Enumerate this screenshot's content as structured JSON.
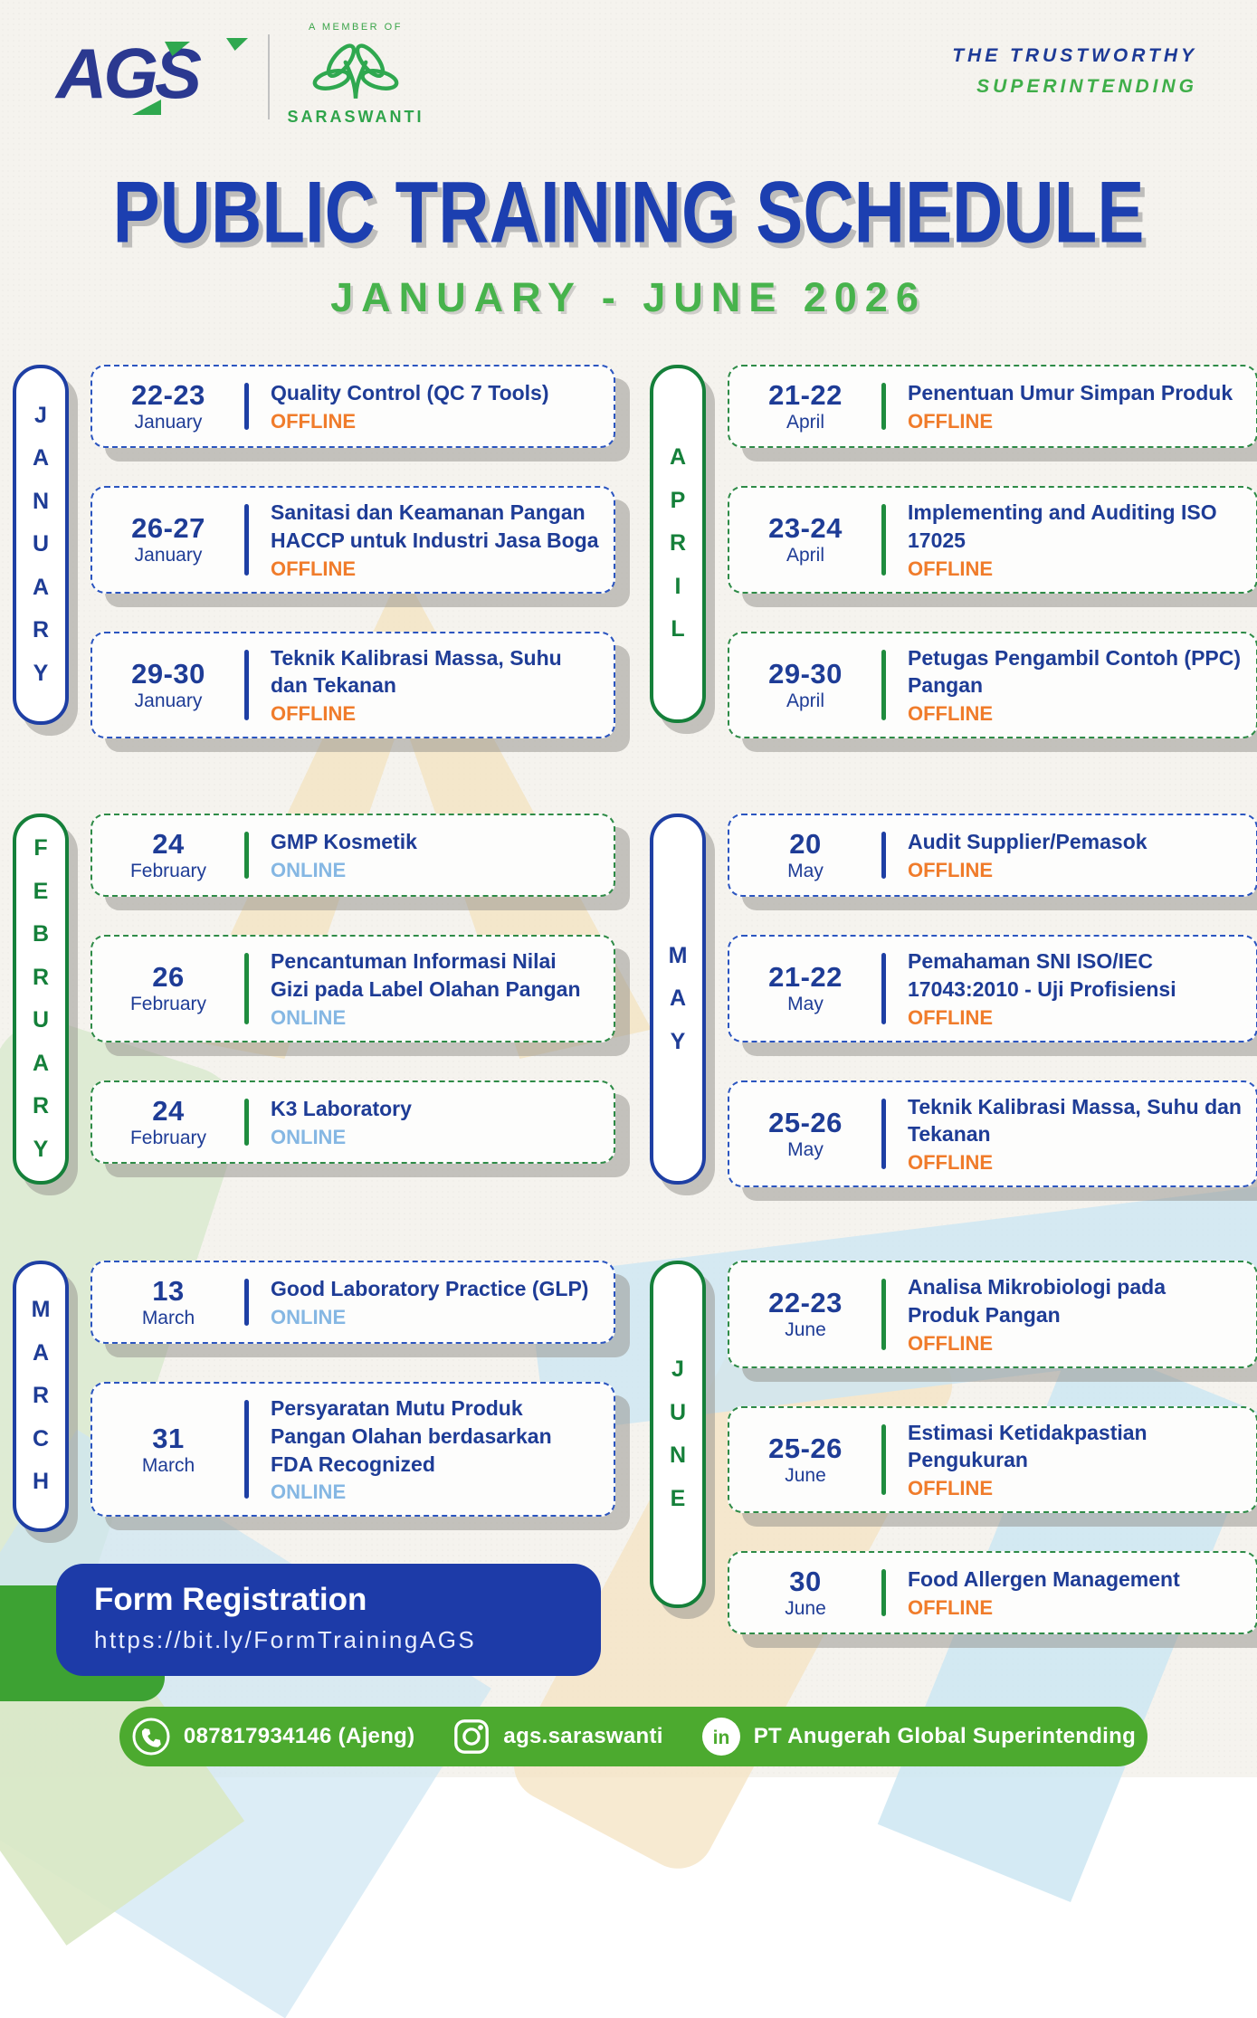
{
  "header": {
    "brand": "AGS",
    "member_of": "A MEMBER OF",
    "member_name": "SARASWANTI",
    "tagline_line1": "THE TRUSTWORTHY",
    "tagline_line2": "SUPERINTENDING"
  },
  "title": "PUBLIC TRAINING SCHEDULE",
  "subtitle": "JANUARY - JUNE 2026",
  "months": [
    {
      "name": "JANUARY",
      "theme": "blue",
      "events": [
        {
          "date": "22-23",
          "month": "January",
          "title": "Quality Control (QC 7 Tools)",
          "mode": "OFFLINE"
        },
        {
          "date": "26-27",
          "month": "January",
          "title": "Sanitasi dan Keamanan Pangan HACCP untuk Industri Jasa Boga",
          "mode": "OFFLINE"
        },
        {
          "date": "29-30",
          "month": "January",
          "title": "Teknik Kalibrasi Massa, Suhu dan Tekanan",
          "mode": "OFFLINE"
        }
      ]
    },
    {
      "name": "FEBRUARY",
      "theme": "green",
      "events": [
        {
          "date": "24",
          "month": "February",
          "title": "GMP Kosmetik",
          "mode": "ONLINE"
        },
        {
          "date": "26",
          "month": "February",
          "title": "Pencantuman Informasi Nilai Gizi pada Label Olahan Pangan",
          "mode": "ONLINE"
        },
        {
          "date": "24",
          "month": "February",
          "title": "K3 Laboratory",
          "mode": "ONLINE"
        }
      ]
    },
    {
      "name": "MARCH",
      "theme": "blue",
      "events": [
        {
          "date": "13",
          "month": "March",
          "title": "Good Laboratory Practice (GLP)",
          "mode": "ONLINE"
        },
        {
          "date": "31",
          "month": "March",
          "title": "Persyaratan Mutu Produk Pangan Olahan berdasarkan FDA Recognized",
          "mode": "ONLINE"
        }
      ]
    },
    {
      "name": "APRIL",
      "theme": "green",
      "events": [
        {
          "date": "21-22",
          "month": "April",
          "title": "Penentuan Umur Simpan Produk",
          "mode": "OFFLINE"
        },
        {
          "date": "23-24",
          "month": "April",
          "title": "Implementing and Auditing ISO 17025",
          "mode": "OFFLINE"
        },
        {
          "date": "29-30",
          "month": "April",
          "title": "Petugas Pengambil Contoh (PPC) Pangan",
          "mode": "OFFLINE"
        }
      ]
    },
    {
      "name": "MAY",
      "theme": "blue",
      "events": [
        {
          "date": "20",
          "month": "May",
          "title": "Audit Supplier/Pemasok",
          "mode": "OFFLINE"
        },
        {
          "date": "21-22",
          "month": "May",
          "title": "Pemahaman SNI ISO/IEC 17043:2010 - Uji Profisiensi",
          "mode": "OFFLINE"
        },
        {
          "date": "25-26",
          "month": "May",
          "title": "Teknik Kalibrasi Massa, Suhu dan Tekanan",
          "mode": "OFFLINE"
        }
      ]
    },
    {
      "name": "JUNE",
      "theme": "green",
      "events": [
        {
          "date": "22-23",
          "month": "June",
          "title": "Analisa Mikrobiologi pada Produk Pangan",
          "mode": "OFFLINE"
        },
        {
          "date": "25-26",
          "month": "June",
          "title": "Estimasi Ketidakpastian Pengukuran",
          "mode": "OFFLINE"
        },
        {
          "date": "30",
          "month": "June",
          "title": "Food Allergen Management",
          "mode": "OFFLINE"
        }
      ]
    }
  ],
  "registration": {
    "title": "Form Registration",
    "url": "https://bit.ly/FormTrainingAGS"
  },
  "footer": {
    "phone": "087817934146 (Ajeng)",
    "instagram": "ags.saraswanti",
    "company": "PT Anugerah Global Superintending"
  },
  "colors": {
    "navy": "#1e3c96",
    "title_blue": "#1c3fb0",
    "green": "#2fa84f",
    "dark_green": "#15803a",
    "orange_offline": "#f07c2b",
    "light_blue_online": "#85b7e3",
    "footer_green": "#4caa2f",
    "form_blue": "#1d3ba8",
    "form_green": "#3da233"
  }
}
